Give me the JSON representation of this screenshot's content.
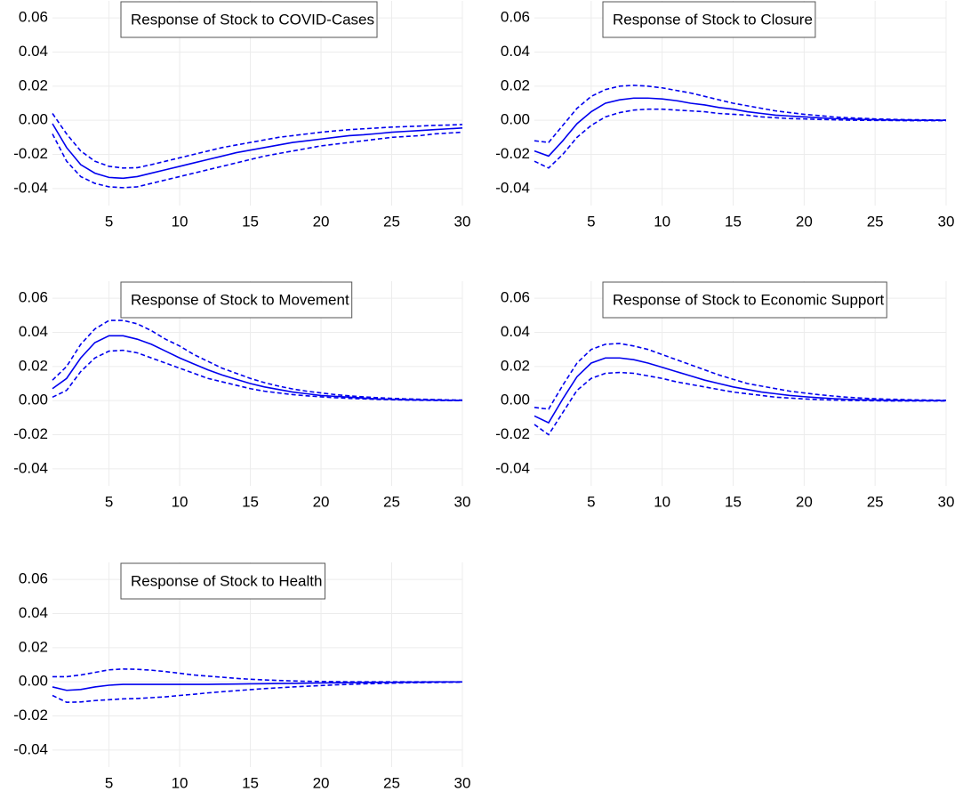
{
  "chart_data": [
    {
      "type": "line",
      "title": "Response of Stock to COVID-Cases",
      "x": [
        1,
        2,
        3,
        4,
        5,
        6,
        7,
        8,
        9,
        10,
        11,
        12,
        13,
        14,
        15,
        16,
        17,
        18,
        19,
        20,
        21,
        22,
        23,
        24,
        25,
        26,
        27,
        28,
        29,
        30
      ],
      "xlim": [
        1,
        30
      ],
      "xticks": [
        5,
        10,
        15,
        20,
        25,
        30
      ],
      "ylim": [
        -0.05,
        0.07
      ],
      "yticks": [
        -0.04,
        -0.02,
        {
          "value": 0,
          "label": "0.00"
        },
        0.02,
        0.04,
        0.06
      ],
      "grid": true,
      "series": [
        {
          "color": "#0000ee",
          "dash": false,
          "values": [
            -0.002,
            -0.016,
            -0.026,
            -0.031,
            -0.0335,
            -0.034,
            -0.033,
            -0.031,
            -0.029,
            -0.027,
            -0.025,
            -0.023,
            -0.021,
            -0.019,
            -0.0175,
            -0.016,
            -0.0145,
            -0.013,
            -0.012,
            -0.011,
            -0.01,
            -0.009,
            -0.0085,
            -0.0078,
            -0.007,
            -0.0065,
            -0.006,
            -0.0055,
            -0.005,
            -0.0045
          ]
        },
        {
          "color": "#0000ee",
          "dash": true,
          "values": [
            0.004,
            -0.008,
            -0.018,
            -0.024,
            -0.027,
            -0.028,
            -0.0278,
            -0.026,
            -0.024,
            -0.022,
            -0.02,
            -0.018,
            -0.016,
            -0.0145,
            -0.013,
            -0.0115,
            -0.01,
            -0.009,
            -0.008,
            -0.007,
            -0.0062,
            -0.0055,
            -0.005,
            -0.0045,
            -0.004,
            -0.0037,
            -0.0034,
            -0.003,
            -0.0028,
            -0.0025
          ]
        },
        {
          "color": "#0000ee",
          "dash": true,
          "values": [
            -0.008,
            -0.024,
            -0.033,
            -0.037,
            -0.039,
            -0.0395,
            -0.039,
            -0.037,
            -0.035,
            -0.033,
            -0.031,
            -0.029,
            -0.027,
            -0.025,
            -0.023,
            -0.021,
            -0.0195,
            -0.018,
            -0.0165,
            -0.015,
            -0.014,
            -0.013,
            -0.012,
            -0.011,
            -0.01,
            -0.0095,
            -0.009,
            -0.008,
            -0.0075,
            -0.007
          ]
        }
      ]
    },
    {
      "type": "line",
      "title": "Response of Stock to Closure",
      "x": [
        1,
        2,
        3,
        4,
        5,
        6,
        7,
        8,
        9,
        10,
        11,
        12,
        13,
        14,
        15,
        16,
        17,
        18,
        19,
        20,
        21,
        22,
        23,
        24,
        25,
        26,
        27,
        28,
        29,
        30
      ],
      "xlim": [
        1,
        30
      ],
      "xticks": [
        5,
        10,
        15,
        20,
        25,
        30
      ],
      "ylim": [
        -0.05,
        0.07
      ],
      "yticks": [
        -0.04,
        -0.02,
        {
          "value": 0,
          "label": "0.00"
        },
        0.02,
        0.04,
        0.06
      ],
      "grid": true,
      "series": [
        {
          "color": "#0000ee",
          "dash": false,
          "values": [
            -0.018,
            -0.021,
            -0.012,
            -0.002,
            0.005,
            0.01,
            0.012,
            0.013,
            0.013,
            0.0125,
            0.0115,
            0.01,
            0.009,
            0.0075,
            0.0065,
            0.005,
            0.004,
            0.003,
            0.0025,
            0.002,
            0.0015,
            0.001,
            0.0008,
            0.0005,
            0.0003,
            0.0002,
            0.0001,
            0,
            0,
            0
          ]
        },
        {
          "color": "#0000ee",
          "dash": true,
          "values": [
            -0.012,
            -0.013,
            -0.003,
            0.007,
            0.014,
            0.018,
            0.02,
            0.0205,
            0.02,
            0.019,
            0.0175,
            0.016,
            0.014,
            0.012,
            0.01,
            0.0085,
            0.007,
            0.0055,
            0.0045,
            0.0035,
            0.0028,
            0.002,
            0.0015,
            0.0012,
            0.0008,
            0.0006,
            0.0004,
            0.0003,
            0.0002,
            0.0001
          ]
        },
        {
          "color": "#0000ee",
          "dash": true,
          "values": [
            -0.024,
            -0.028,
            -0.02,
            -0.01,
            -0.003,
            0.002,
            0.0045,
            0.006,
            0.0065,
            0.0065,
            0.006,
            0.0055,
            0.005,
            0.004,
            0.0035,
            0.003,
            0.002,
            0.0015,
            0.001,
            0.0008,
            0.0005,
            0.0003,
            0.0001,
            0,
            -0.0001,
            -0.0001,
            -0.0002,
            -0.0002,
            -0.0002,
            -0.0002
          ]
        }
      ]
    },
    {
      "type": "line",
      "title": "Response of Stock to Movement",
      "x": [
        1,
        2,
        3,
        4,
        5,
        6,
        7,
        8,
        9,
        10,
        11,
        12,
        13,
        14,
        15,
        16,
        17,
        18,
        19,
        20,
        21,
        22,
        23,
        24,
        25,
        26,
        27,
        28,
        29,
        30
      ],
      "xlim": [
        1,
        30
      ],
      "xticks": [
        5,
        10,
        15,
        20,
        25,
        30
      ],
      "ylim": [
        -0.05,
        0.07
      ],
      "yticks": [
        -0.04,
        -0.02,
        {
          "value": 0,
          "label": "0.00"
        },
        0.02,
        0.04,
        0.06
      ],
      "grid": true,
      "series": [
        {
          "color": "#0000ee",
          "dash": false,
          "values": [
            0.007,
            0.013,
            0.025,
            0.034,
            0.038,
            0.038,
            0.036,
            0.033,
            0.029,
            0.025,
            0.0215,
            0.018,
            0.015,
            0.0125,
            0.01,
            0.008,
            0.0065,
            0.005,
            0.004,
            0.003,
            0.0025,
            0.002,
            0.0015,
            0.001,
            0.0008,
            0.0006,
            0.0004,
            0.0003,
            0.0002,
            0.0001
          ]
        },
        {
          "color": "#0000ee",
          "dash": true,
          "values": [
            0.012,
            0.02,
            0.033,
            0.042,
            0.047,
            0.047,
            0.045,
            0.041,
            0.036,
            0.032,
            0.027,
            0.023,
            0.019,
            0.016,
            0.013,
            0.0105,
            0.0085,
            0.0068,
            0.0055,
            0.0045,
            0.0035,
            0.0028,
            0.0022,
            0.0017,
            0.0013,
            0.001,
            0.0008,
            0.0006,
            0.0004,
            0.0003
          ]
        },
        {
          "color": "#0000ee",
          "dash": true,
          "values": [
            0.002,
            0.006,
            0.017,
            0.025,
            0.029,
            0.0295,
            0.028,
            0.025,
            0.022,
            0.019,
            0.016,
            0.013,
            0.011,
            0.009,
            0.007,
            0.0055,
            0.0045,
            0.0035,
            0.0028,
            0.0022,
            0.0017,
            0.0013,
            0.001,
            0.0007,
            0.0005,
            0.0003,
            0.0002,
            0.0001,
            0,
            0
          ]
        }
      ]
    },
    {
      "type": "line",
      "title": "Response of Stock to Economic Support",
      "x": [
        1,
        2,
        3,
        4,
        5,
        6,
        7,
        8,
        9,
        10,
        11,
        12,
        13,
        14,
        15,
        16,
        17,
        18,
        19,
        20,
        21,
        22,
        23,
        24,
        25,
        26,
        27,
        28,
        29,
        30
      ],
      "xlim": [
        1,
        30
      ],
      "xticks": [
        5,
        10,
        15,
        20,
        25,
        30
      ],
      "ylim": [
        -0.05,
        0.07
      ],
      "yticks": [
        -0.04,
        -0.02,
        {
          "value": 0,
          "label": "0.00"
        },
        0.02,
        0.04,
        0.06
      ],
      "grid": true,
      "series": [
        {
          "color": "#0000ee",
          "dash": false,
          "values": [
            -0.009,
            -0.013,
            0.001,
            0.014,
            0.022,
            0.025,
            0.025,
            0.024,
            0.022,
            0.0195,
            0.017,
            0.0145,
            0.012,
            0.01,
            0.008,
            0.0065,
            0.005,
            0.004,
            0.003,
            0.0023,
            0.0017,
            0.0012,
            0.0008,
            0.0005,
            0.0003,
            0.0002,
            0.0001,
            0,
            0,
            0
          ]
        },
        {
          "color": "#0000ee",
          "dash": true,
          "values": [
            -0.004,
            -0.005,
            0.009,
            0.022,
            0.03,
            0.033,
            0.0335,
            0.032,
            0.03,
            0.027,
            0.024,
            0.021,
            0.018,
            0.015,
            0.0125,
            0.01,
            0.0085,
            0.007,
            0.0055,
            0.0045,
            0.0035,
            0.0027,
            0.002,
            0.0015,
            0.0011,
            0.0008,
            0.0006,
            0.0004,
            0.0003,
            0.0002
          ]
        },
        {
          "color": "#0000ee",
          "dash": true,
          "values": [
            -0.014,
            -0.02,
            -0.007,
            0.006,
            0.013,
            0.016,
            0.0165,
            0.016,
            0.0145,
            0.013,
            0.011,
            0.0095,
            0.008,
            0.0065,
            0.005,
            0.004,
            0.003,
            0.002,
            0.0015,
            0.001,
            0.0006,
            0.0003,
            0.0001,
            0,
            -0.0001,
            -0.0002,
            -0.0002,
            -0.0002,
            -0.0002,
            -0.0002
          ]
        }
      ]
    },
    {
      "type": "line",
      "title": "Response of Stock to Health",
      "x": [
        1,
        2,
        3,
        4,
        5,
        6,
        7,
        8,
        9,
        10,
        11,
        12,
        13,
        14,
        15,
        16,
        17,
        18,
        19,
        20,
        21,
        22,
        23,
        24,
        25,
        26,
        27,
        28,
        29,
        30
      ],
      "xlim": [
        1,
        30
      ],
      "xticks": [
        5,
        10,
        15,
        20,
        25,
        30
      ],
      "ylim": [
        -0.05,
        0.07
      ],
      "yticks": [
        -0.04,
        -0.02,
        {
          "value": 0,
          "label": "0.00"
        },
        0.02,
        0.04,
        0.06
      ],
      "grid": true,
      "series": [
        {
          "color": "#0000ee",
          "dash": false,
          "values": [
            -0.003,
            -0.005,
            -0.0045,
            -0.003,
            -0.002,
            -0.0015,
            -0.0015,
            -0.0015,
            -0.0015,
            -0.0015,
            -0.0015,
            -0.0015,
            -0.0014,
            -0.0013,
            -0.0012,
            -0.0011,
            -0.001,
            -0.0009,
            -0.0008,
            -0.0007,
            -0.0006,
            -0.0005,
            -0.0004,
            -0.0003,
            -0.0003,
            -0.0002,
            -0.0002,
            -0.0001,
            -0.0001,
            -0.0001
          ]
        },
        {
          "color": "#0000ee",
          "dash": true,
          "values": [
            0.003,
            0.003,
            0.004,
            0.0055,
            0.007,
            0.0075,
            0.0073,
            0.0068,
            0.006,
            0.005,
            0.004,
            0.0033,
            0.0027,
            0.002,
            0.0015,
            0.0011,
            0.0008,
            0.0005,
            0.0003,
            0.0002,
            0.0001,
            0,
            0,
            0,
            0,
            0,
            0,
            0,
            0,
            0
          ]
        },
        {
          "color": "#0000ee",
          "dash": true,
          "values": [
            -0.008,
            -0.012,
            -0.0118,
            -0.011,
            -0.0105,
            -0.01,
            -0.0098,
            -0.0093,
            -0.0088,
            -0.008,
            -0.0073,
            -0.0065,
            -0.0058,
            -0.0052,
            -0.0046,
            -0.004,
            -0.0035,
            -0.003,
            -0.0026,
            -0.0022,
            -0.0018,
            -0.0015,
            -0.0012,
            -0.001,
            -0.0008,
            -0.0006,
            -0.0005,
            -0.0004,
            -0.0003,
            -0.0002
          ]
        }
      ]
    }
  ]
}
